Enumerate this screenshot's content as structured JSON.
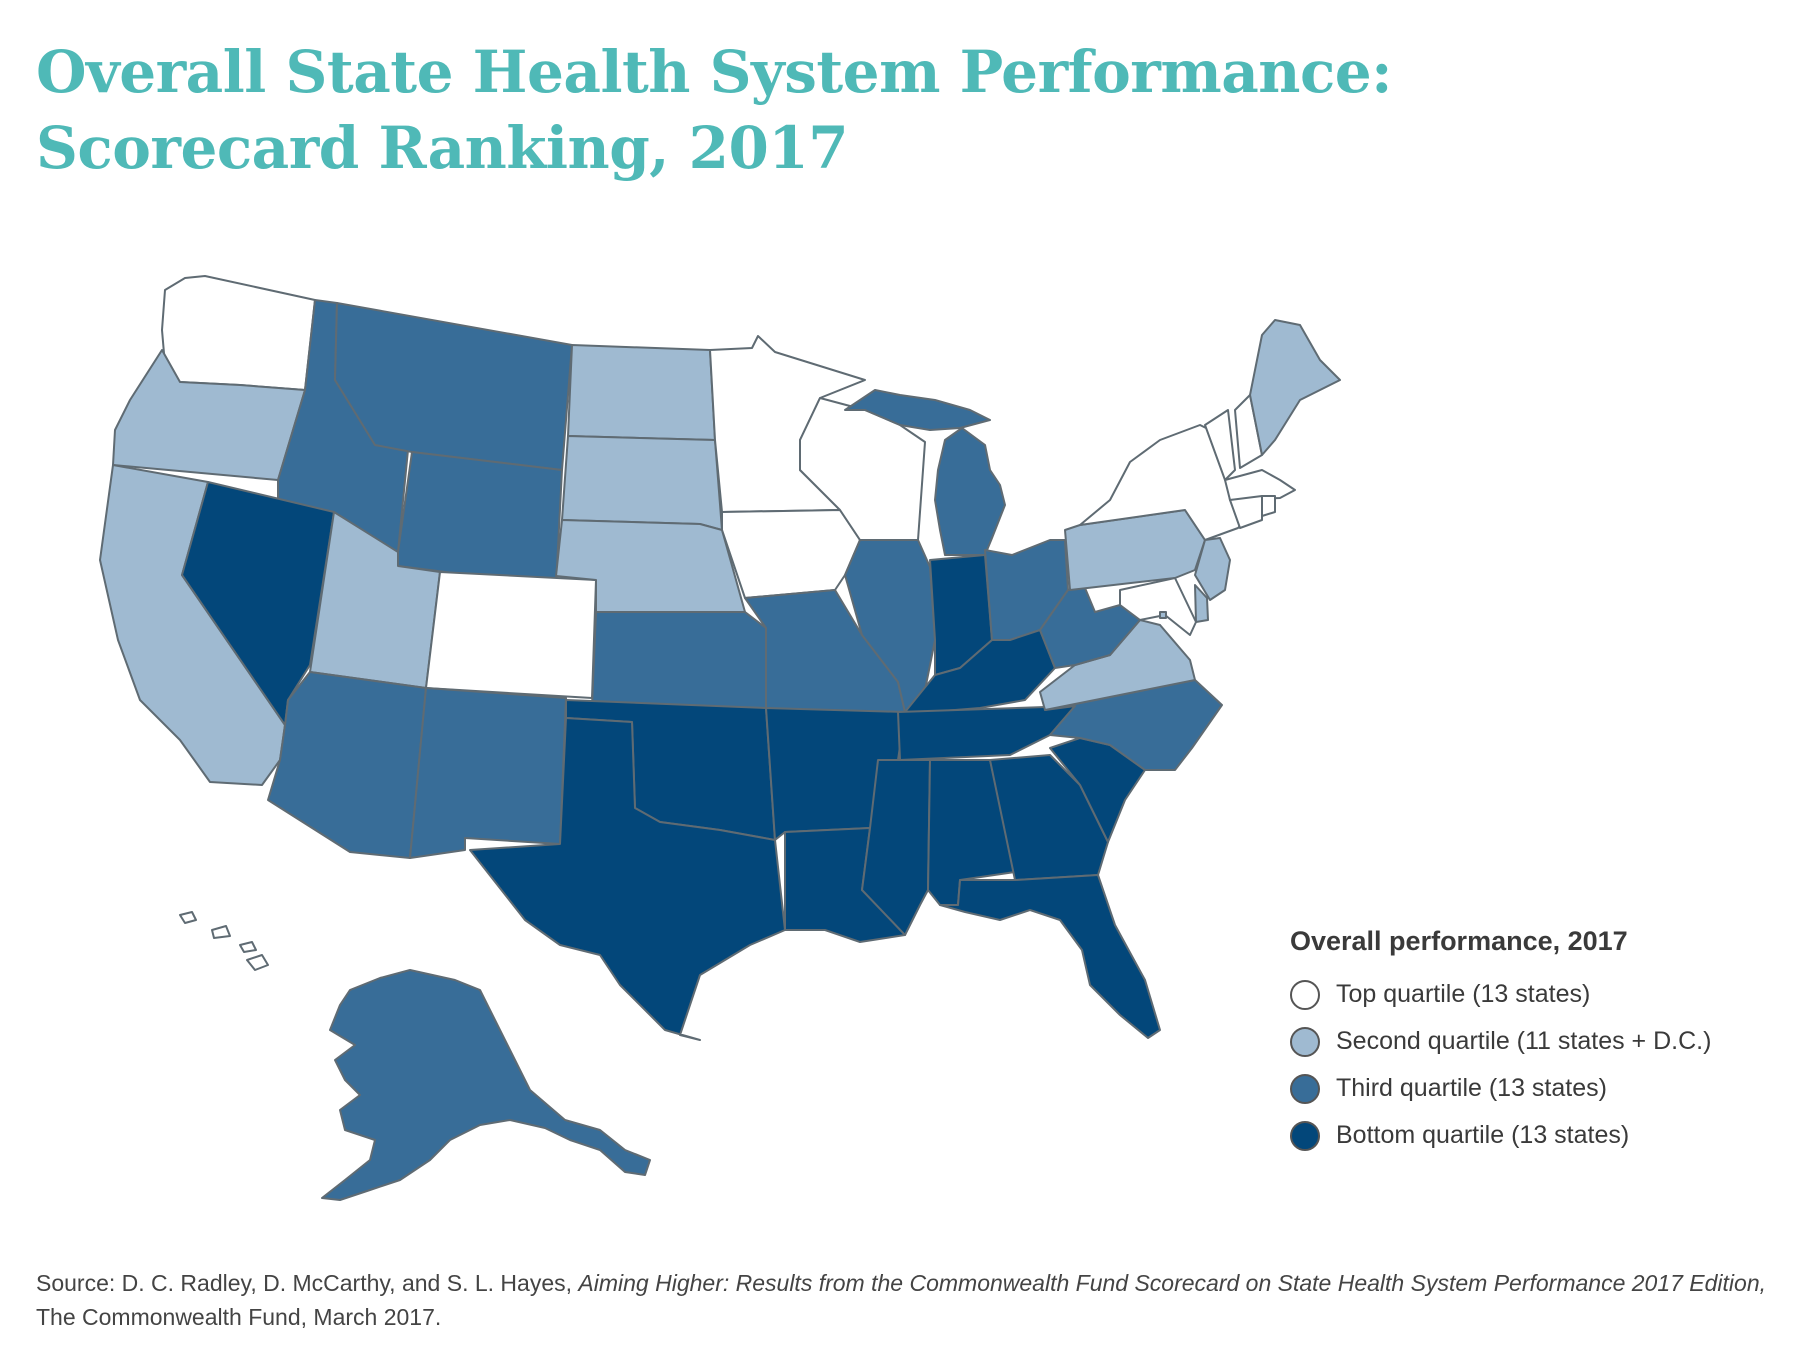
{
  "title": {
    "line1": "Overall State Health System Performance:",
    "line2": "Scorecard Ranking, 2017"
  },
  "colors": {
    "top": "#ffffff",
    "second": "#9fbad1",
    "third": "#386d98",
    "bottom": "#03477a",
    "border": "#5f6b73",
    "title": "#4fb9b7"
  },
  "legend": {
    "title": "Overall performance, 2017",
    "items": [
      {
        "key": "top",
        "label": "Top quartile (13 states)"
      },
      {
        "key": "second",
        "label": "Second quartile (11 states + D.C.)"
      },
      {
        "key": "third",
        "label": "Third quartile (13 states)"
      },
      {
        "key": "bottom",
        "label": "Bottom quartile (13 states)"
      }
    ]
  },
  "states": {
    "WA": "top",
    "OR": "second",
    "CA": "second",
    "ID": "third",
    "NV": "bottom",
    "MT": "third",
    "WY": "third",
    "UT": "second",
    "CO": "top",
    "AZ": "third",
    "NM": "third",
    "ND": "second",
    "SD": "second",
    "NE": "second",
    "KS": "third",
    "OK": "bottom",
    "TX": "bottom",
    "MN": "top",
    "IA": "top",
    "MO": "third",
    "AR": "bottom",
    "LA": "bottom",
    "WI": "top",
    "IL": "third",
    "MI": "third",
    "IN": "bottom",
    "OH": "third",
    "KY": "bottom",
    "TN": "bottom",
    "MS": "bottom",
    "AL": "bottom",
    "GA": "bottom",
    "FL": "bottom",
    "SC": "bottom",
    "NC": "third",
    "VA": "second",
    "WV": "third",
    "PA": "second",
    "NY": "top",
    "VT": "top",
    "NH": "top",
    "ME": "second",
    "MA": "top",
    "RI": "top",
    "CT": "top",
    "NJ": "second",
    "DE": "second",
    "MD": "top",
    "DC": "second",
    "AK": "third",
    "HI": "top"
  },
  "source": {
    "prefix": "Source: D. C. Radley, D. McCarthy, and S. L. Hayes, ",
    "italic": "Aiming Higher: Results from the Commonwealth Fund Scorecard on State Health System Performance 2017 Edition,",
    "suffix": " The Commonwealth Fund, March 2017."
  }
}
